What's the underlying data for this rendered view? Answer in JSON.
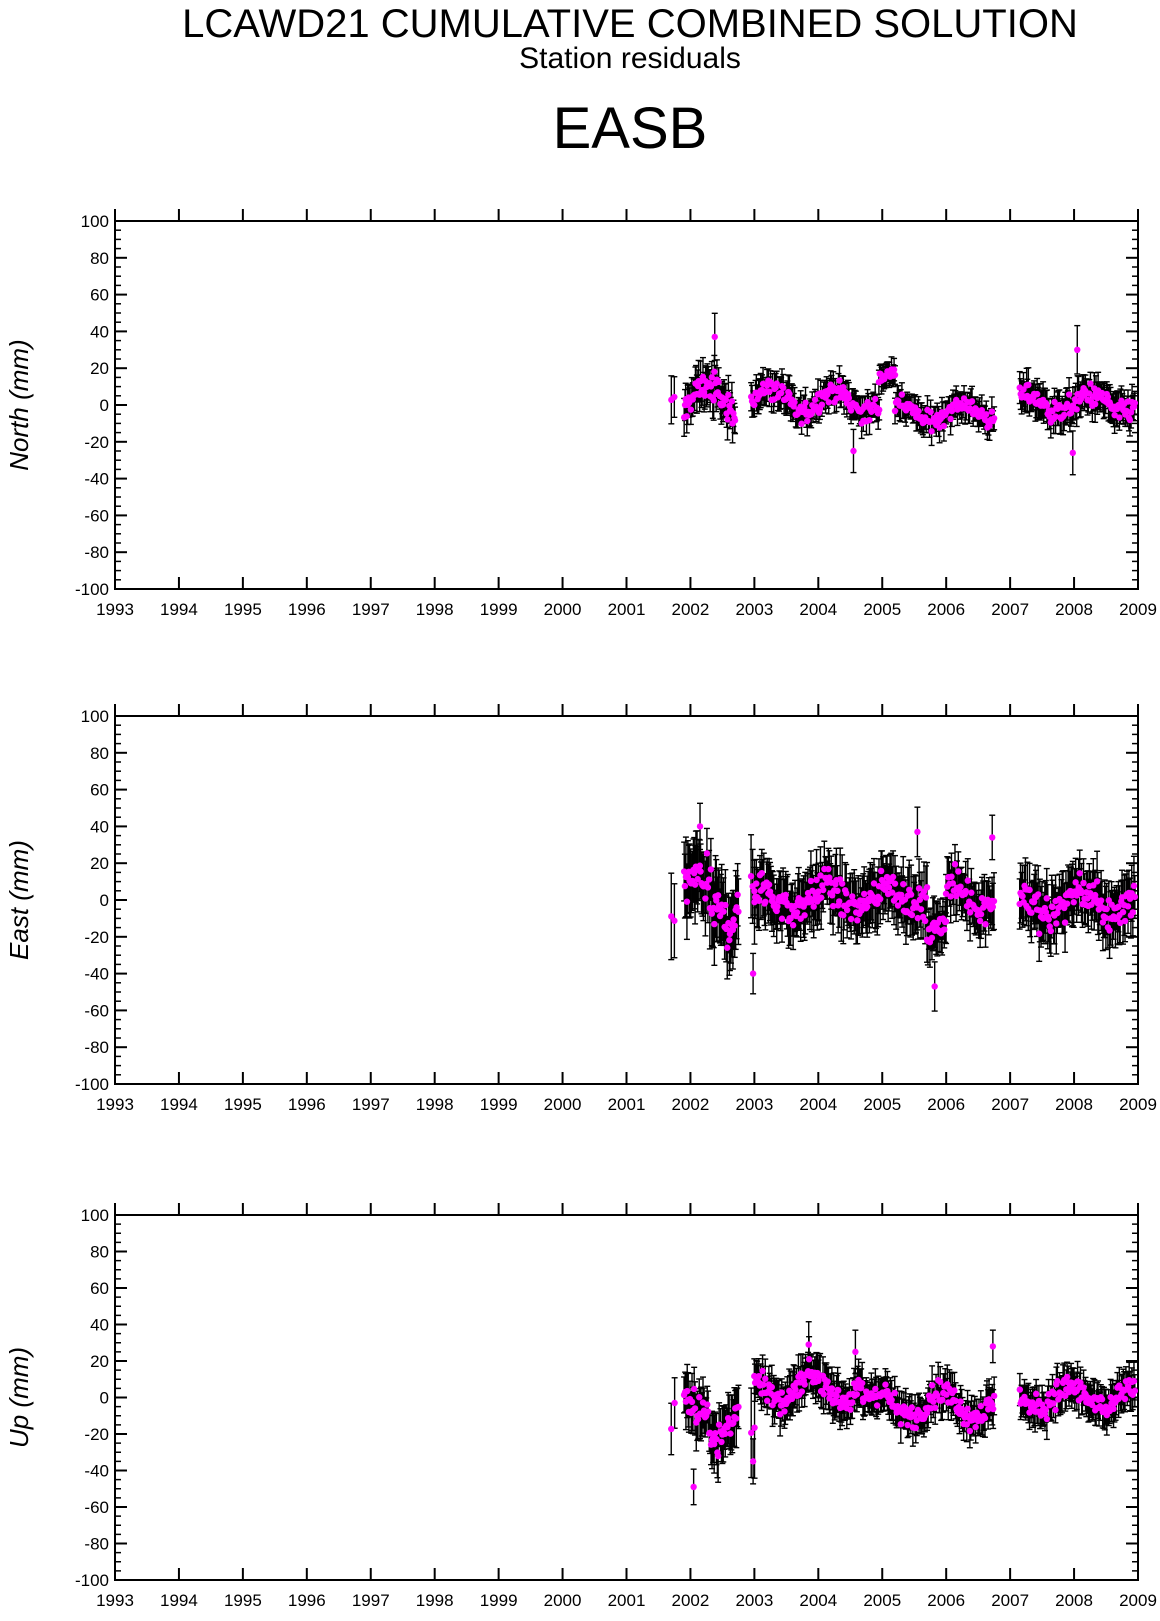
{
  "title": "LCAWD21 CUMULATIVE COMBINED SOLUTION",
  "subtitle": "Station residuals",
  "station": "EASB",
  "colors": {
    "point": "#ff00ff",
    "errorbar": "#000000",
    "axis": "#000000"
  },
  "chart_data": [
    {
      "type": "scatter",
      "ylabel": "North (mm)",
      "xlim": [
        1993,
        2009
      ],
      "ylim": [
        -100,
        100
      ],
      "x_ticks": [
        "1993",
        "1994",
        "1995",
        "1996",
        "1997",
        "1998",
        "1999",
        "2000",
        "2001",
        "2002",
        "2003",
        "2004",
        "2005",
        "2006",
        "2007",
        "2008",
        "2009"
      ],
      "y_ticks": [
        "100",
        "80",
        "60",
        "40",
        "20",
        "0",
        "-20",
        "-40",
        "-60",
        "-80",
        "-100"
      ],
      "segments": [
        {
          "x0": 2001.7,
          "x1": 2001.75,
          "n": 2,
          "mean": 2,
          "amp": 1,
          "noise": 4,
          "err": 12
        },
        {
          "x0": 2001.9,
          "x1": 2002.7,
          "n": 60,
          "mean": 3,
          "amp": 8,
          "noise": 9,
          "err": 9
        },
        {
          "x0": 2002.95,
          "x1": 2003.6,
          "n": 40,
          "mean": 4,
          "amp": 5,
          "noise": 8,
          "err": 8
        },
        {
          "x0": 2003.6,
          "x1": 2004.95,
          "n": 90,
          "mean": 2,
          "amp": 6,
          "noise": 7,
          "err": 7
        },
        {
          "x0": 2004.95,
          "x1": 2005.2,
          "n": 20,
          "mean": 15,
          "amp": 3,
          "noise": 4,
          "err": 6
        },
        {
          "x0": 2005.2,
          "x1": 2006.75,
          "n": 90,
          "mean": -4,
          "amp": 5,
          "noise": 6,
          "err": 7
        },
        {
          "x0": 2007.15,
          "x1": 2008.95,
          "n": 120,
          "mean": 1,
          "amp": 5,
          "noise": 7,
          "err": 8
        }
      ],
      "highlights": [
        [
          2002.38,
          37
        ],
        [
          2008.05,
          30
        ],
        [
          2007.98,
          -26
        ],
        [
          2004.55,
          -25
        ]
      ]
    },
    {
      "type": "scatter",
      "ylabel": "East (mm)",
      "xlim": [
        1993,
        2009
      ],
      "ylim": [
        -100,
        100
      ],
      "x_ticks": [
        "1993",
        "1994",
        "1995",
        "1996",
        "1997",
        "1998",
        "1999",
        "2000",
        "2001",
        "2002",
        "2003",
        "2004",
        "2005",
        "2006",
        "2007",
        "2008",
        "2009"
      ],
      "y_ticks": [
        "100",
        "80",
        "60",
        "40",
        "20",
        "0",
        "-20",
        "-40",
        "-60",
        "-80",
        "-100"
      ],
      "segments": [
        {
          "x0": 2001.7,
          "x1": 2001.75,
          "n": 2,
          "mean": -2,
          "amp": 10,
          "noise": 10,
          "err": 25
        },
        {
          "x0": 2001.9,
          "x1": 2002.75,
          "n": 60,
          "mean": 0,
          "amp": 12,
          "noise": 16,
          "err": 18
        },
        {
          "x0": 2002.95,
          "x1": 2003.0,
          "n": 3,
          "mean": -10,
          "amp": 20,
          "noise": 20,
          "err": 20
        },
        {
          "x0": 2003.0,
          "x1": 2004.0,
          "n": 70,
          "mean": 0,
          "amp": 6,
          "noise": 11,
          "err": 14
        },
        {
          "x0": 2004.0,
          "x1": 2005.7,
          "n": 110,
          "mean": 2,
          "amp": 6,
          "noise": 11,
          "err": 14
        },
        {
          "x0": 2005.7,
          "x1": 2006.0,
          "n": 20,
          "mean": -16,
          "amp": 4,
          "noise": 7,
          "err": 12
        },
        {
          "x0": 2006.0,
          "x1": 2006.75,
          "n": 45,
          "mean": 2,
          "amp": 6,
          "noise": 10,
          "err": 13
        },
        {
          "x0": 2007.15,
          "x1": 2008.95,
          "n": 120,
          "mean": -2,
          "amp": 6,
          "noise": 12,
          "err": 14
        }
      ],
      "highlights": [
        [
          2005.82,
          -47
        ],
        [
          2002.98,
          -40
        ],
        [
          2006.72,
          34
        ],
        [
          2005.55,
          37
        ],
        [
          2002.15,
          40
        ]
      ]
    },
    {
      "type": "scatter",
      "ylabel": "Up (mm)",
      "xlim": [
        1993,
        2009
      ],
      "ylim": [
        -100,
        100
      ],
      "x_ticks": [
        "1993",
        "1994",
        "1995",
        "1996",
        "1997",
        "1998",
        "1999",
        "2000",
        "2001",
        "2002",
        "2003",
        "2004",
        "2005",
        "2006",
        "2007",
        "2008",
        "2009"
      ],
      "y_ticks": [
        "100",
        "80",
        "60",
        "40",
        "20",
        "0",
        "-20",
        "-40",
        "-60",
        "-80",
        "-100"
      ],
      "segments": [
        {
          "x0": 2001.7,
          "x1": 2001.75,
          "n": 2,
          "mean": -8,
          "amp": 14,
          "noise": 10,
          "err": 18
        },
        {
          "x0": 2001.9,
          "x1": 2002.75,
          "n": 55,
          "mean": -12,
          "amp": 10,
          "noise": 12,
          "err": 13
        },
        {
          "x0": 2002.95,
          "x1": 2003.0,
          "n": 2,
          "mean": -25,
          "amp": 10,
          "noise": 10,
          "err": 30
        },
        {
          "x0": 2003.0,
          "x1": 2004.7,
          "n": 120,
          "mean": 5,
          "amp": 7,
          "noise": 8,
          "err": 10
        },
        {
          "x0": 2004.7,
          "x1": 2006.75,
          "n": 130,
          "mean": -4,
          "amp": 7,
          "noise": 8,
          "err": 9
        },
        {
          "x0": 2007.15,
          "x1": 2008.95,
          "n": 120,
          "mean": 0,
          "amp": 6,
          "noise": 8,
          "err": 9
        }
      ],
      "highlights": [
        [
          2002.05,
          -49
        ],
        [
          2002.98,
          -35
        ],
        [
          2006.73,
          28
        ],
        [
          2003.85,
          29
        ],
        [
          2004.58,
          25
        ]
      ]
    }
  ]
}
